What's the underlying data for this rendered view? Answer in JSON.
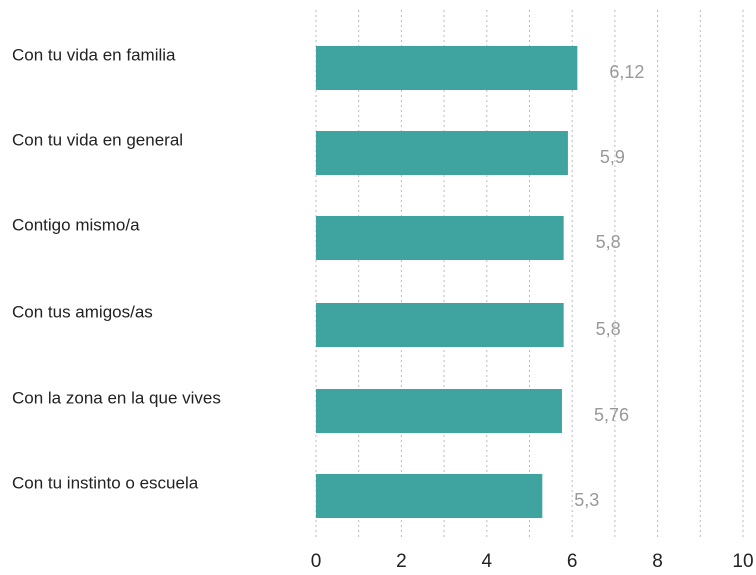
{
  "chart_data": {
    "type": "hbar",
    "categories": [
      "Con tu vida en familia",
      "Con tu vida en general",
      "Contigo mismo/a",
      "Con tus amigos/as",
      "Con la zona en la que vives",
      "Con tu instinto o escuela"
    ],
    "values": [
      6.12,
      5.9,
      5.8,
      5.8,
      5.76,
      5.3
    ],
    "value_labels": [
      "6,12",
      "5,9",
      "5,8",
      "5,8",
      "5,76",
      "5,3"
    ],
    "color": "#3fa3a0",
    "xlim": [
      0,
      10
    ],
    "xticks": [
      0,
      2,
      4,
      6,
      8,
      10
    ],
    "xminorticks": [
      1,
      3,
      5,
      7,
      9
    ],
    "grid": true
  }
}
